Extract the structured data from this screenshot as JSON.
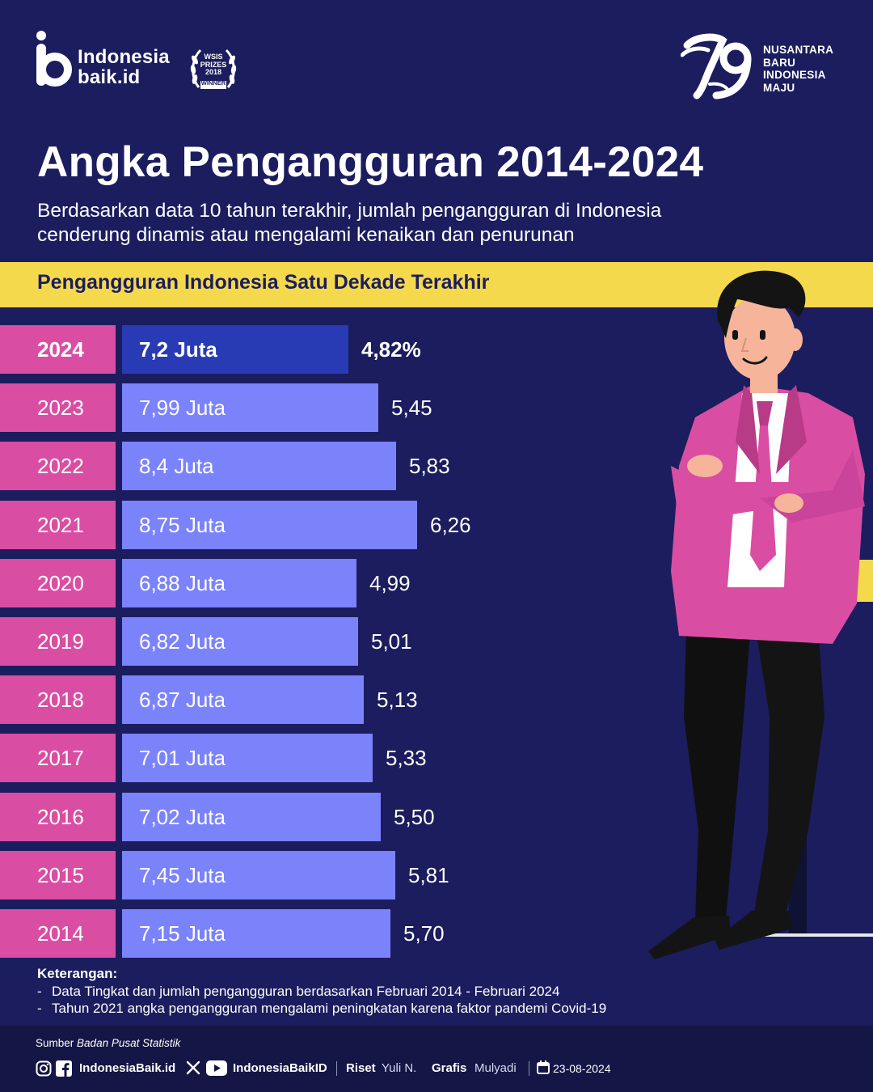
{
  "header": {
    "brand_line1": "Indonesia",
    "brand_line2": "baik.id",
    "award_lines": [
      "WSIS",
      "PRIZES",
      "2018",
      "WINNER"
    ],
    "anniversary_number": "79",
    "anniversary_lines": [
      "NUSANTARA",
      "BARU",
      "INDONESIA",
      "MAJU"
    ]
  },
  "title": "Angka Pengangguran 2014-2024",
  "subtitle": "Berdasarkan data 10 tahun terakhir, jumlah pengangguran di Indonesia cenderung dinamis atau mengalami kenaikan dan penurunan",
  "band_label": "Pengangguran Indonesia Satu Dekade Terakhir",
  "chart_data": {
    "type": "bar",
    "orientation": "horizontal",
    "categories": [
      "2024",
      "2023",
      "2022",
      "2021",
      "2020",
      "2019",
      "2018",
      "2017",
      "2016",
      "2015",
      "2014"
    ],
    "bar_labels": [
      "7,2 Juta",
      "7,99 Juta",
      "8,4 Juta",
      "8,75 Juta",
      "6,88 Juta",
      "6,82 Juta",
      "6,87 Juta",
      "7,01 Juta",
      "7,02 Juta",
      "7,45 Juta",
      "7,15 Juta"
    ],
    "rate_labels": [
      "4,82%",
      "5,45",
      "5,83",
      "6,26",
      "4,99",
      "5,01",
      "5,13",
      "5,33",
      "5,50",
      "5,81",
      "5,70"
    ],
    "series": [
      {
        "values": [
          4.82,
          5.45,
          5.83,
          6.26,
          4.99,
          5.01,
          5.13,
          5.33,
          5.5,
          5.81,
          5.7
        ]
      }
    ],
    "secondary_values": [
      7.2,
      7.99,
      8.4,
      8.75,
      6.88,
      6.82,
      6.87,
      7.01,
      7.02,
      7.45,
      7.15
    ],
    "highlight": "2024",
    "colors": {
      "bar": "#7b83fb",
      "highlight": "#283bb5",
      "year_box": "#d94ea3"
    }
  },
  "notes": {
    "heading": "Keterangan:",
    "items": [
      "Data Tingkat dan jumlah pengangguran berdasarkan Februari 2014 - Februari 2024",
      "Tahun 2021 angka pengangguran mengalami peningkatan karena faktor pandemi Covid-19"
    ],
    "dash": "-"
  },
  "footer": {
    "source_prefix": "Sumber",
    "source_name": "Badan Pusat Statistik",
    "handle_1": "IndonesiaBaik.id",
    "handle_2": "IndonesiaBaikID",
    "riset_label": "Riset",
    "riset_name": "Yuli N.",
    "grafis_label": "Grafis",
    "grafis_name": "Mulyadi",
    "date": "23-08-2024"
  },
  "colors": {
    "background": "#1b1d5e",
    "accent_yellow": "#f5d94c",
    "accent_pink": "#d94ea3"
  }
}
